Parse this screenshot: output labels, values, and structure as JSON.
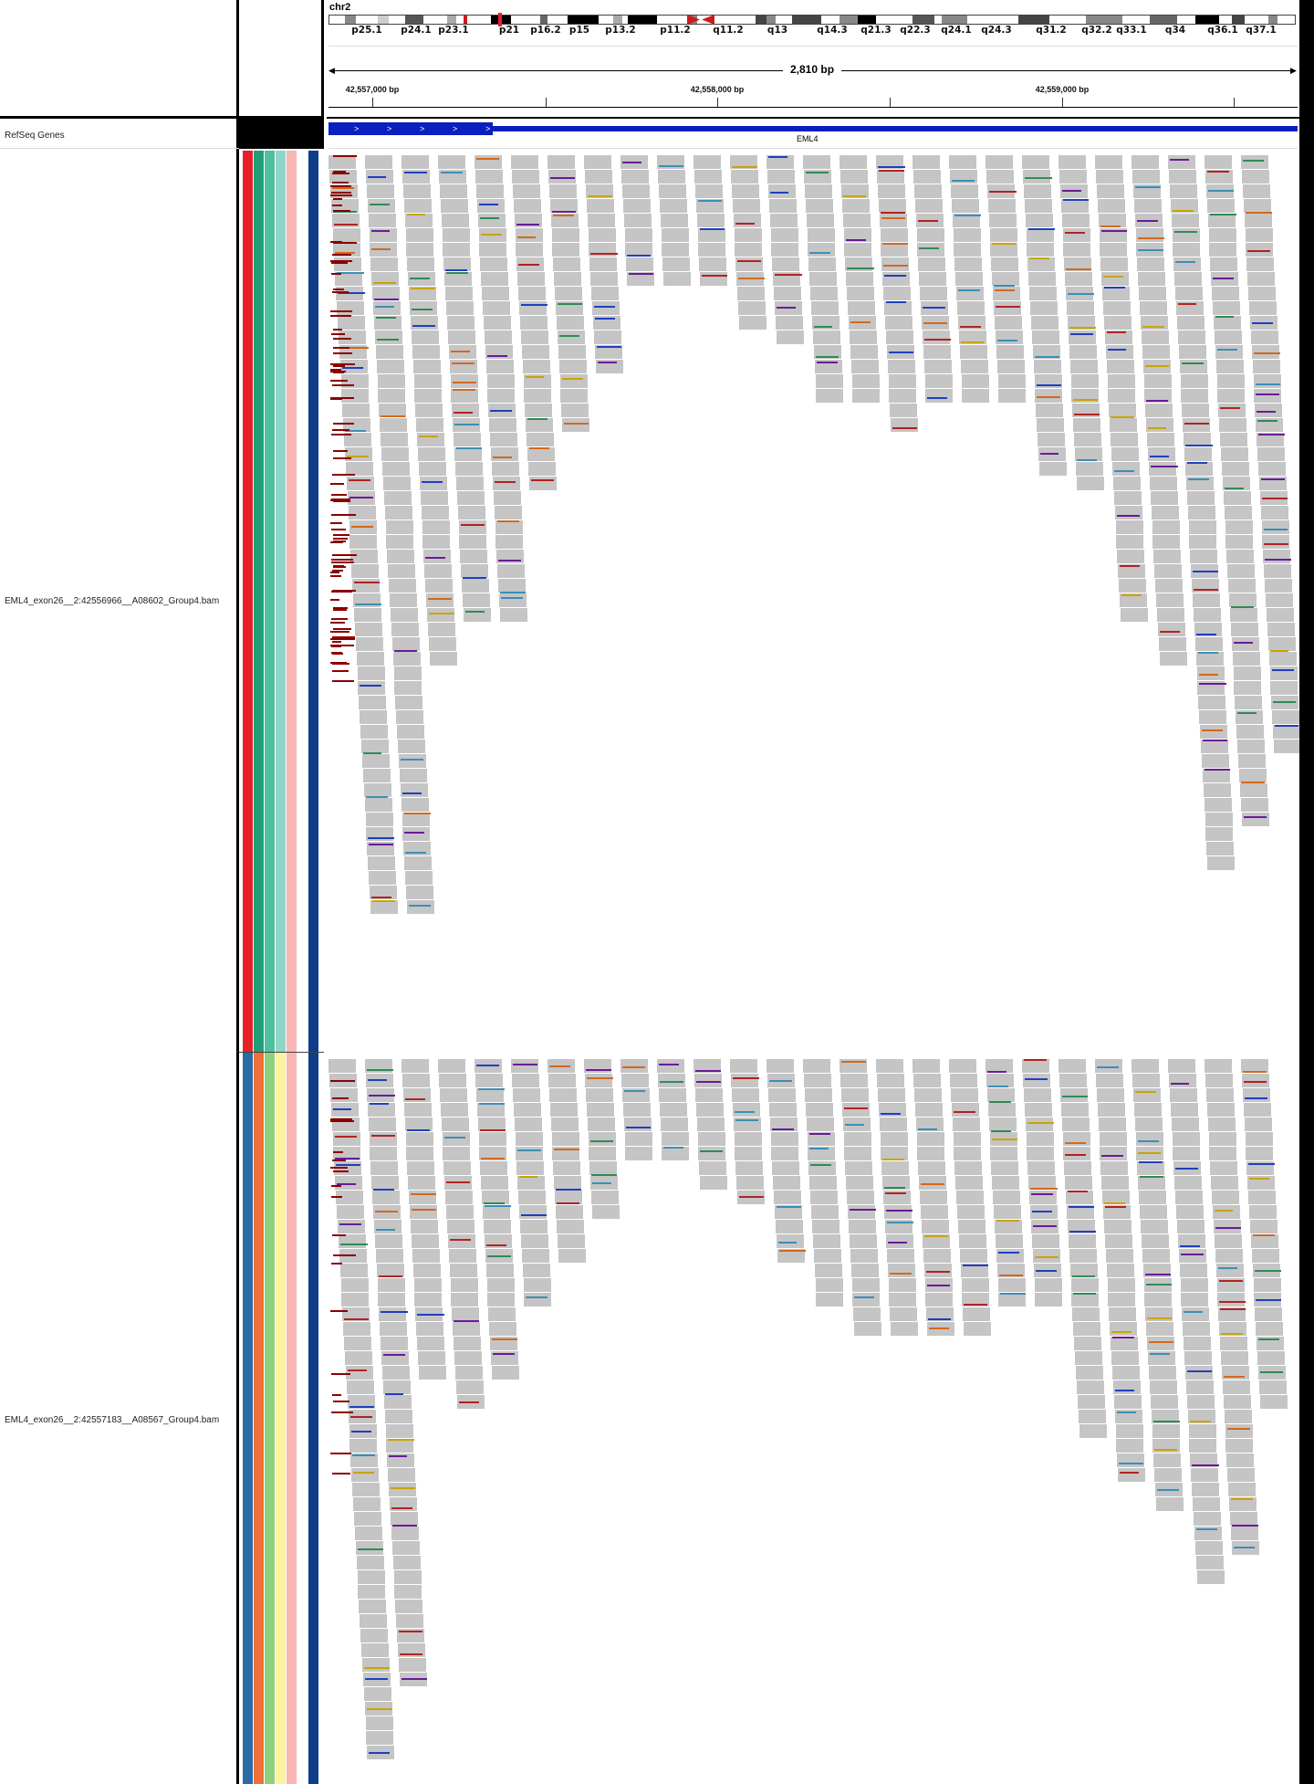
{
  "header": {
    "chromosome": "chr2",
    "span_label": "2,810 bp",
    "cytobands": [
      "p25.1",
      "p24.1",
      "p23.1",
      "p21",
      "p16.2",
      "p15",
      "p13.2",
      "p11.2",
      "q11.2",
      "q13",
      "q14.3",
      "q21.3",
      "q22.3",
      "q24.1",
      "q24.3",
      "q31.2",
      "q32.2",
      "q33.1",
      "q34",
      "q36.1",
      "q37.1"
    ],
    "ticks": [
      {
        "label": "42,557,000 bp"
      },
      {
        "label": "42,558,000 bp"
      },
      {
        "label": "42,559,000 bp"
      }
    ]
  },
  "tracks": {
    "refseq": {
      "name": "RefSeq Genes",
      "gene": "EML4",
      "strand_arrows": [
        ">",
        ">",
        ">",
        ">",
        ">"
      ]
    },
    "bam1": {
      "name": "EML4_exon26__2:42556966__A08602_Group4.bam"
    },
    "bam2": {
      "name": "EML4_exon26__2:42557183__A08567_Group4.bam"
    }
  },
  "attribute_colors": {
    "bam1": [
      "#e8202a",
      "#1f9e77",
      "#4fbf9e",
      "#8fd4c8",
      "#f7b6b3",
      "#ffffff",
      "#0c3e8a"
    ],
    "bam2": [
      "#2a6aa5",
      "#ee6f3a",
      "#8fd07c",
      "#fbf3a0",
      "#f7b6b3",
      "#ffffff",
      "#0c3e8a"
    ]
  },
  "colors": {
    "read_fill": "#c5c5c5",
    "gene_blue": "#0a1fbf",
    "softclip_red": "#8b0000",
    "centromere": "#c81d1d"
  }
}
